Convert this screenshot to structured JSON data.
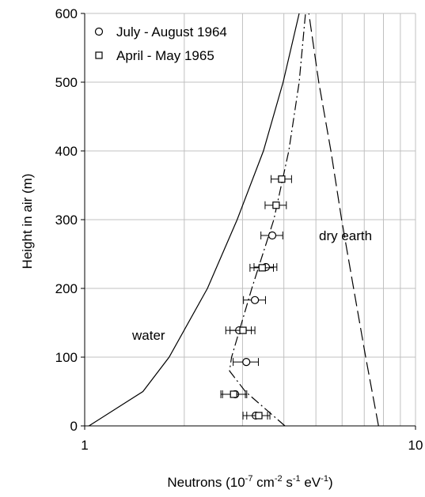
{
  "chart_data": {
    "type": "scatter",
    "xlabel": [
      "Neutrons (10",
      "-7",
      " cm",
      "-2",
      " s",
      "-1",
      " eV",
      "-1",
      ")"
    ],
    "ylabel": "Height in air (m)",
    "xlog": true,
    "xlim": [
      1,
      10
    ],
    "xticks": [
      1,
      10
    ],
    "xminor": [
      2,
      3,
      4,
      5,
      6,
      7,
      8,
      9
    ],
    "ylim": [
      0,
      600
    ],
    "yticks": [
      0,
      100,
      200,
      300,
      400,
      500,
      600
    ],
    "grid": true,
    "legend": "top-left",
    "series": [
      {
        "name": "July - August 1964",
        "marker": "circle",
        "color": "#000000",
        "x": [
          3.29,
          2.85,
          3.08,
          2.93,
          3.27,
          3.53,
          3.69
        ],
        "values": [
          15,
          46,
          93,
          139,
          183,
          231,
          277
        ],
        "x_errors": [
          0.28,
          0.24,
          0.27,
          0.26,
          0.25,
          0.28,
          0.28
        ]
      },
      {
        "name": "April - May 1965",
        "marker": "square",
        "color": "#000000",
        "x": [
          3.36,
          2.82,
          3.01,
          3.44,
          3.79,
          3.94
        ],
        "values": [
          15,
          46,
          139,
          230,
          321,
          359
        ],
        "x_errors": [
          0.27,
          0.24,
          0.26,
          0.28,
          0.28,
          0.28
        ]
      }
    ],
    "curves": [
      {
        "style": "solid",
        "x": [
          1.03,
          1.5,
          1.8,
          2.35,
          2.89,
          3.47,
          3.98,
          4.45
        ],
        "values": [
          0,
          50,
          100,
          200,
          300,
          400,
          500,
          600
        ]
      },
      {
        "style": "dash",
        "x": [
          7.73,
          7.07,
          6.5,
          5.98,
          5.55,
          5.1,
          4.76
        ],
        "values": [
          0,
          100,
          200,
          300,
          400,
          500,
          600
        ]
      },
      {
        "style": "dashdot",
        "x": [
          4.03,
          3.06,
          2.74,
          2.78,
          3.2,
          3.73,
          4.14,
          4.45,
          4.65
        ],
        "values": [
          0,
          50,
          80,
          100,
          200,
          300,
          400,
          500,
          600
        ]
      }
    ],
    "annotations": [
      "water",
      "dry earth"
    ]
  }
}
